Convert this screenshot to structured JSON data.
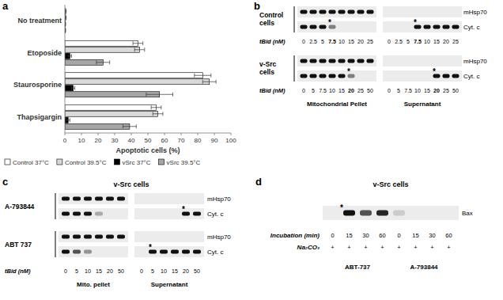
{
  "panel_labels": [
    "a",
    "b",
    "c",
    "d"
  ],
  "chart_data": {
    "type": "bar",
    "orientation": "horizontal",
    "categories": [
      "No treatment",
      "Etoposide",
      "Staurosporine",
      "Thapsigargin"
    ],
    "series": [
      {
        "name": "Control 37°C",
        "color": "#ffffff",
        "values": [
          0.5,
          44,
          83,
          55
        ],
        "errors": [
          0.3,
          3,
          5,
          3
        ]
      },
      {
        "name": "Control 39.5°C",
        "color": "#d9d9d9",
        "values": [
          0.5,
          45,
          87,
          56
        ],
        "errors": [
          0.3,
          3,
          4,
          3
        ]
      },
      {
        "name": "vSrc 37°C",
        "color": "#000000",
        "values": [
          0.3,
          3,
          5,
          2
        ],
        "errors": [
          0.2,
          1,
          1,
          1
        ]
      },
      {
        "name": "vSrc 39.5°C",
        "color": "#a6a6a6",
        "values": [
          0.3,
          23,
          57,
          39
        ],
        "errors": [
          0.2,
          4,
          8,
          4
        ]
      }
    ],
    "xlim": [
      0,
      100
    ],
    "xticks": [
      0,
      10,
      20,
      30,
      40,
      50,
      60,
      70,
      80,
      90,
      100
    ],
    "x_label": "Apoptotic cells (%)",
    "legend": "bottom",
    "grid": false
  },
  "blots": {
    "asterisk_symbol": "*",
    "b": {
      "sections": [
        "Mitochondrial Pellet",
        "Supernatant"
      ],
      "x_label": "tBid (nM)",
      "groups": [
        {
          "name": "Control cells",
          "lanes": [
            0,
            2.5,
            5,
            7.5,
            10,
            15,
            20,
            25
          ],
          "bold_lane": 3,
          "rows": [
            {
              "name": "mHsp70",
              "pellet": [
                1,
                1,
                1,
                1,
                1,
                1,
                1,
                1
              ],
              "supernatant": [
                0,
                0,
                0,
                0,
                0,
                0,
                0,
                0
              ],
              "asterisk_pellet": null,
              "asterisk_supernatant": null
            },
            {
              "name": "Cyt. c",
              "pellet": [
                1,
                1,
                1,
                0.5,
                0,
                0,
                0,
                0
              ],
              "supernatant": [
                0,
                0,
                0,
                1,
                1,
                1,
                1,
                1
              ],
              "asterisk_pellet": 3,
              "asterisk_supernatant": 3
            }
          ]
        },
        {
          "name": "v-Src cells",
          "lanes": [
            0,
            5,
            7.5,
            10,
            15,
            20,
            25,
            50
          ],
          "bold_lane": 5,
          "rows": [
            {
              "name": "mHsp70",
              "pellet": [
                1,
                1,
                1,
                1,
                1,
                1,
                1,
                1
              ],
              "supernatant": [
                0,
                0,
                0,
                0,
                0,
                0,
                0,
                0
              ],
              "asterisk_pellet": null,
              "asterisk_supernatant": null
            },
            {
              "name": "Cyt. c",
              "pellet": [
                1,
                1,
                1,
                1,
                1,
                0.5,
                0,
                0
              ],
              "supernatant": [
                0,
                0,
                0,
                0,
                0,
                1,
                1,
                1
              ],
              "asterisk_pellet": 5,
              "asterisk_supernatant": 5
            }
          ]
        }
      ]
    },
    "c": {
      "title": "v-Src cells",
      "sections": [
        "Mito. pellet",
        "Supernatant"
      ],
      "x_label": "tBid (nM)",
      "lanes": [
        0,
        5,
        10,
        15,
        20,
        50
      ],
      "groups": [
        {
          "name": "A-793844",
          "rows": [
            {
              "name": "mHsp70",
              "pellet": [
                1,
                1,
                1,
                1,
                1,
                1
              ],
              "supernatant": [
                0,
                0,
                0,
                0,
                0,
                0
              ],
              "asterisk_pellet": null,
              "asterisk_supernatant": null
            },
            {
              "name": "Cyt. c",
              "pellet": [
                1,
                1,
                1,
                0.3,
                0,
                0
              ],
              "supernatant": [
                0,
                0,
                0,
                0,
                1,
                1
              ],
              "asterisk_pellet": null,
              "asterisk_supernatant": 4
            }
          ]
        },
        {
          "name": "ABT 737",
          "rows": [
            {
              "name": "mHsp70",
              "pellet": [
                1,
                1,
                1,
                1,
                1,
                1
              ],
              "supernatant": [
                0,
                0,
                0,
                0,
                0,
                0
              ],
              "asterisk_pellet": null,
              "asterisk_supernatant": null
            },
            {
              "name": "Cyt. c",
              "pellet": [
                1,
                0.7,
                0.4,
                0,
                0,
                0
              ],
              "supernatant": [
                0,
                1,
                1,
                1,
                1,
                1
              ],
              "asterisk_pellet": null,
              "asterisk_supernatant": 1
            }
          ]
        }
      ]
    },
    "d": {
      "title": "v-Src cells",
      "band": "Bax",
      "intensity": [
        0,
        1,
        0.7,
        0.9,
        0.15,
        0,
        0,
        0
      ],
      "asterisk_lane": 1,
      "rows": [
        {
          "label": "Incubation (min)",
          "values": [
            0,
            15,
            30,
            60,
            0,
            15,
            30,
            60
          ]
        },
        {
          "label": "Na₂CO₃",
          "values": [
            "+",
            "+",
            "+",
            "+",
            "+",
            "+",
            "+",
            "+"
          ]
        }
      ],
      "treatments": [
        "ABT-737",
        "A-793844"
      ]
    }
  }
}
